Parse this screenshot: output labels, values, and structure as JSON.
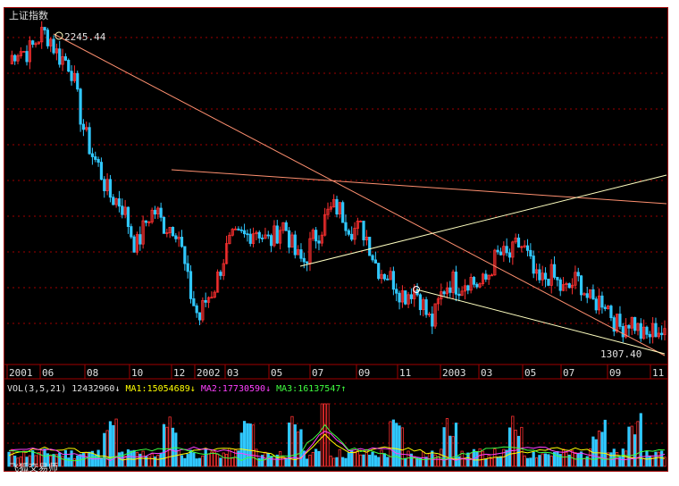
{
  "title": "上证指数",
  "footer": "飞狐交易师",
  "colors": {
    "up": "#ff3030",
    "down": "#30c8ff",
    "grid": "#a00000",
    "ma1": "#ffff00",
    "ma2": "#ff40ff",
    "ma3": "#40ff40",
    "trend": "#ff9070",
    "light": "#ffffc0",
    "text": "#e0e0e0"
  },
  "volume": {
    "label": "VOL(3,5,21)",
    "value": "12432960",
    "value_arrow": "↓",
    "ma1_label": "MA1:15054689",
    "ma1_arrow": "↓",
    "ma2_label": "MA2:17730590",
    "ma2_arrow": "↓",
    "ma3_label": "MA3:16137547",
    "ma3_arrow": "↑"
  },
  "chart_data": {
    "type": "line",
    "title": "上证指数",
    "x_tick_labels": [
      "2001",
      "06",
      "08",
      "10",
      "12",
      "2002",
      "03",
      "05",
      "07",
      "09",
      "11",
      "2003",
      "03",
      "05",
      "07",
      "09",
      "11"
    ],
    "annotations": [
      {
        "text": "2245.44",
        "x": "2001-06",
        "y": 2245.44,
        "kind": "high"
      },
      {
        "text": "1307.40",
        "x": "2003-11",
        "y": 1307.4,
        "kind": "low"
      }
    ],
    "ylim": [
      1280,
      2270
    ],
    "x": [
      "2001-04",
      "2001-05",
      "2001-06",
      "2001-07",
      "2001-08",
      "2001-09",
      "2001-10",
      "2001-11",
      "2001-12",
      "2002-01",
      "2002-02",
      "2002-03",
      "2002-04",
      "2002-05",
      "2002-06",
      "2002-07",
      "2002-08",
      "2002-09",
      "2002-10",
      "2002-11",
      "2002-12",
      "2003-01",
      "2003-02",
      "2003-03",
      "2003-04",
      "2003-05",
      "2003-06",
      "2003-07",
      "2003-08",
      "2003-09",
      "2003-10",
      "2003-11"
    ],
    "series": [
      {
        "values": [
          2160,
          2220,
          2240,
          2120,
          1860,
          1760,
          1630,
          1720,
          1640,
          1380,
          1560,
          1660,
          1640,
          1660,
          1560,
          1720,
          1700,
          1620,
          1500,
          1480,
          1400,
          1520,
          1490,
          1560,
          1620,
          1520,
          1500,
          1490,
          1440,
          1380,
          1360,
          1340
        ]
      }
    ]
  }
}
